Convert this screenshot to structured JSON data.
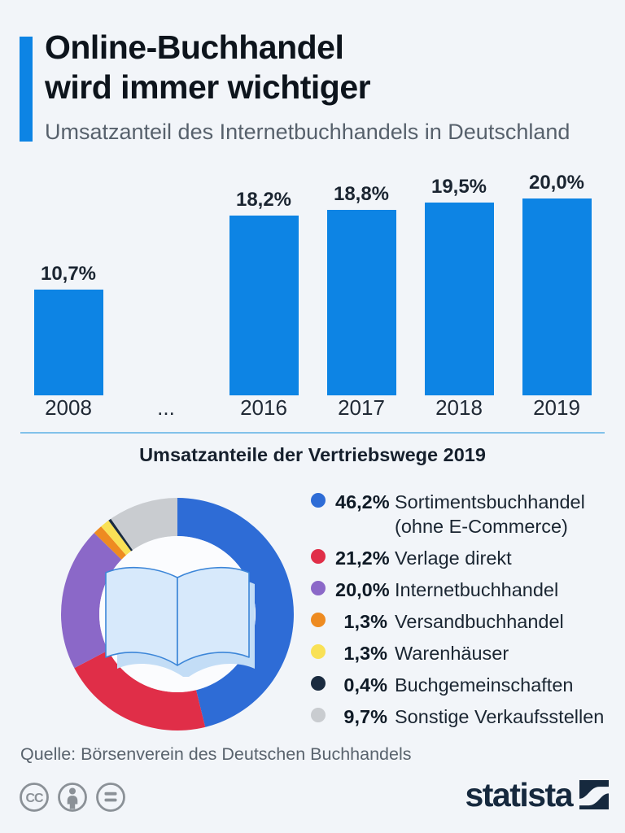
{
  "header": {
    "title": "Online-Buchhandel\nwird immer wichtiger",
    "subtitle": "Umsatzanteil des Internetbuchhandels in Deutschland",
    "accent_color": "#0d84e4"
  },
  "chart_data": [
    {
      "type": "bar",
      "title": "Umsatzanteil des Internetbuchhandels in Deutschland",
      "categories": [
        "2008",
        "...",
        "2016",
        "2017",
        "2018",
        "2019"
      ],
      "values": [
        10.7,
        null,
        18.2,
        18.8,
        19.5,
        20.0
      ],
      "value_labels": [
        "10,7%",
        null,
        "18,2%",
        "18,8%",
        "19,5%",
        "20,0%"
      ],
      "bar_color": "#0d84e4",
      "xlabel": "",
      "ylabel": "",
      "ylim": [
        0,
        20
      ],
      "grid": false,
      "legend_position": "none"
    },
    {
      "type": "pie",
      "title": "Umsatzanteile der Vertriebswege 2019",
      "donut": true,
      "center_icon": "open-book-icon",
      "legend_position": "right",
      "slices": [
        {
          "pct": "46,2%",
          "value": 46.2,
          "label": "Sortimentsbuchhandel\n(ohne E-Commerce)",
          "color": "#2e6cd6"
        },
        {
          "pct": "21,2%",
          "value": 21.2,
          "label": "Verlage direkt",
          "color": "#e02e48"
        },
        {
          "pct": "20,0%",
          "value": 20.0,
          "label": "Internetbuchhandel",
          "color": "#8b68c8"
        },
        {
          "pct": "1,3%",
          "value": 1.3,
          "label": "Versandbuchhandel",
          "color": "#ee8b21"
        },
        {
          "pct": "1,3%",
          "value": 1.3,
          "label": "Warenhäuser",
          "color": "#f9e156"
        },
        {
          "pct": "0,4%",
          "value": 0.4,
          "label": "Buchgemeinschaften",
          "color": "#1a2b40"
        },
        {
          "pct": "9,7%",
          "value": 9.7,
          "label": "Sonstige Verkaufsstellen",
          "color": "#c9ccd0"
        }
      ]
    }
  ],
  "footer": {
    "source": "Quelle: Börsenverein des Deutschen Buchhandels",
    "license_icons": [
      "cc-icon",
      "attribution-person-icon",
      "equal-sign-icon"
    ],
    "brand": "statista",
    "brand_color": "#16293e"
  }
}
